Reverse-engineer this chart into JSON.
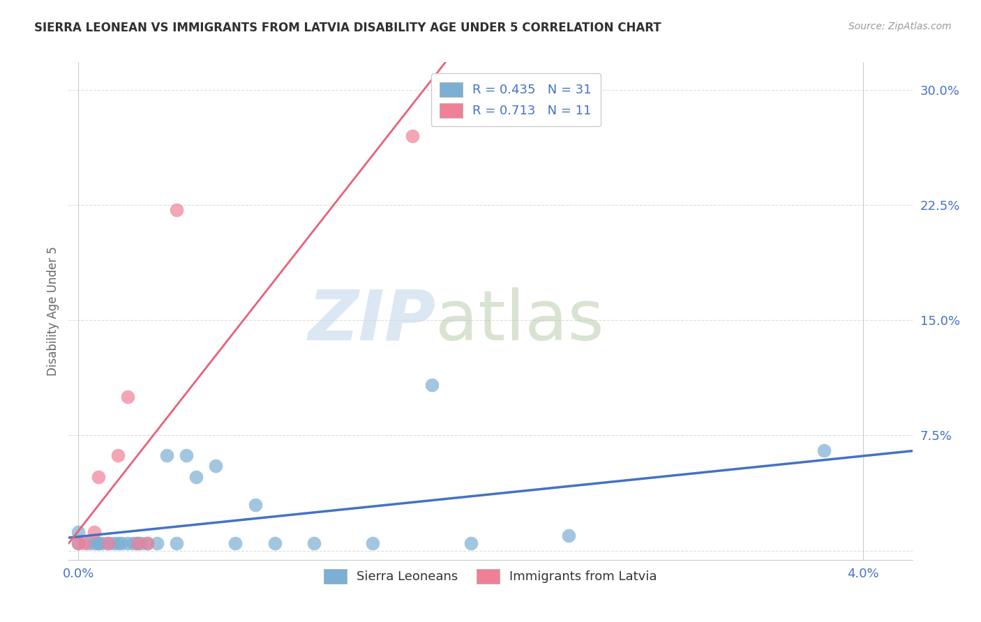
{
  "title": "SIERRA LEONEAN VS IMMIGRANTS FROM LATVIA DISABILITY AGE UNDER 5 CORRELATION CHART",
  "source": "Source: ZipAtlas.com",
  "ylabel": "Disability Age Under 5",
  "ytick_vals": [
    0.0,
    0.075,
    0.15,
    0.225,
    0.3
  ],
  "ytick_labels": [
    "",
    "7.5%",
    "15.0%",
    "22.5%",
    "30.0%"
  ],
  "xlim": [
    -0.0005,
    0.0425
  ],
  "ylim": [
    -0.006,
    0.318
  ],
  "watermark_zip": "ZIP",
  "watermark_atlas": "atlas",
  "sl_color": "#7bafd4",
  "latvia_color": "#f08098",
  "sl_line_color": "#4472c4",
  "latvia_line_color": "#e8607a",
  "sl_scatter_x": [
    0.0,
    0.0,
    0.0005,
    0.0008,
    0.001,
    0.001,
    0.0012,
    0.0015,
    0.0018,
    0.002,
    0.0022,
    0.0025,
    0.0028,
    0.003,
    0.0032,
    0.0035,
    0.004,
    0.0045,
    0.005,
    0.0055,
    0.006,
    0.007,
    0.008,
    0.009,
    0.01,
    0.012,
    0.015,
    0.018,
    0.02,
    0.025,
    0.038
  ],
  "sl_scatter_y": [
    0.005,
    0.012,
    0.005,
    0.005,
    0.005,
    0.005,
    0.005,
    0.005,
    0.005,
    0.005,
    0.005,
    0.005,
    0.005,
    0.005,
    0.005,
    0.005,
    0.005,
    0.062,
    0.005,
    0.062,
    0.048,
    0.055,
    0.005,
    0.03,
    0.005,
    0.005,
    0.005,
    0.108,
    0.005,
    0.01,
    0.065
  ],
  "latvia_scatter_x": [
    0.0,
    0.0003,
    0.0008,
    0.001,
    0.0015,
    0.002,
    0.0025,
    0.003,
    0.0035,
    0.005,
    0.017
  ],
  "latvia_scatter_y": [
    0.005,
    0.005,
    0.012,
    0.048,
    0.005,
    0.062,
    0.1,
    0.005,
    0.005,
    0.222,
    0.27
  ],
  "sl_R": 0.435,
  "sl_N": 31,
  "latvia_R": 0.713,
  "latvia_N": 11,
  "grid_color": "#dddddd",
  "background_color": "#ffffff",
  "title_color": "#303030",
  "tick_color": "#4472c4",
  "legend_labels_bottom": [
    "Sierra Leoneans",
    "Immigrants from Latvia"
  ],
  "legend_colors_bottom": [
    "#7bafd4",
    "#f08098"
  ]
}
